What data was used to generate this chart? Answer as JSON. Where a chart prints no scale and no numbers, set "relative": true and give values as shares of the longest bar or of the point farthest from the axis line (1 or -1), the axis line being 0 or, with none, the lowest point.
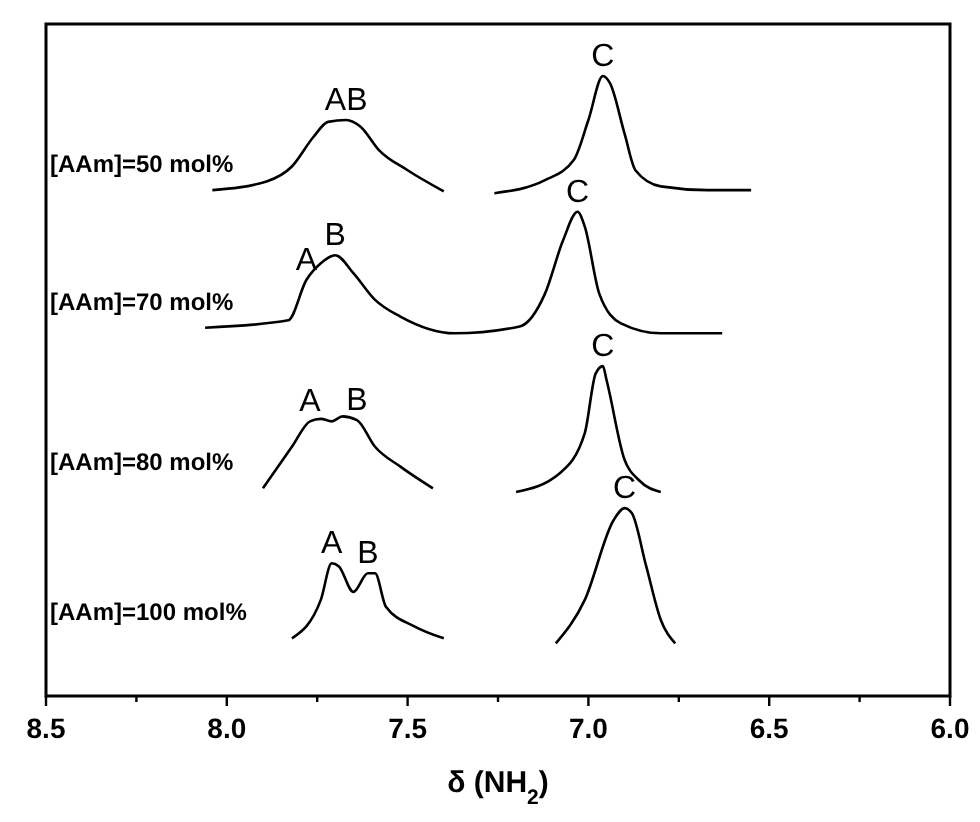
{
  "chart_data": {
    "type": "line",
    "relative": true,
    "xlabel": "δ (NH$_{2}$)",
    "xlim": [
      8.5,
      6.0
    ],
    "xticks": [
      8.5,
      {
        "value": 8.25,
        "label": null
      },
      "8.0",
      {
        "value": 7.75,
        "label": null
      },
      7.5,
      {
        "value": 7.25,
        "label": null
      },
      "7.0",
      {
        "value": 6.75,
        "label": null
      },
      6.5,
      {
        "value": 6.25,
        "label": null
      },
      "6.0"
    ],
    "color": "#000000",
    "grid": false,
    "marker": "none",
    "line_style": "solid",
    "series": [
      {
        "name": "[AAm]=50 mol%",
        "x": [
          8.04,
          7.89,
          7.82,
          7.76,
          7.72,
          7.67,
          7.63,
          7.58,
          7.5,
          7.4,
          7.33,
          7.26,
          7.12,
          7.04,
          7.0,
          6.96,
          6.94,
          6.9,
          6.87,
          6.8,
          6.67,
          6.55
        ],
        "values": [
          0.816,
          0.83,
          0.854,
          0.902,
          0.926,
          0.929,
          0.918,
          0.881,
          0.848,
          0.814,
          null,
          0.811,
          0.832,
          0.865,
          0.929,
          1,
          0.988,
          0.907,
          0.848,
          0.822,
          0.816,
          0.816
        ]
      },
      {
        "name": "[AAm]=70 mol%",
        "x": [
          8.06,
          7.83,
          7.78,
          7.74,
          7.7,
          7.65,
          7.59,
          7.52,
          7.37,
          7.19,
          7.12,
          7.07,
          7.03,
          7.01,
          6.97,
          6.91,
          6.8,
          6.63
        ],
        "values": [
          0.594,
          0.606,
          0.671,
          0.698,
          0.711,
          0.682,
          0.639,
          0.612,
          0.585,
          0.596,
          0.649,
          0.735,
          0.781,
          0.757,
          0.649,
          0.601,
          0.585,
          0.585
        ]
      },
      {
        "name": "[AAm]=80 mol%",
        "x": [
          7.9,
          7.82,
          7.77,
          7.74,
          7.71,
          7.68,
          7.64,
          7.59,
          7.52,
          7.43,
          7.3,
          7.2,
          7.08,
          7.01,
          6.98,
          6.96,
          6.95,
          6.9,
          6.86,
          6.8
        ],
        "values": [
          0.335,
          0.402,
          0.443,
          0.447,
          0.443,
          0.451,
          0.445,
          0.402,
          0.37,
          0.335,
          null,
          0.329,
          0.359,
          0.424,
          0.52,
          0.532,
          0.51,
          0.381,
          0.348,
          0.329
        ]
      },
      {
        "name": "[AAm]=100 mol%",
        "x": [
          7.82,
          7.74,
          7.71,
          7.69,
          7.65,
          7.61,
          7.59,
          7.56,
          7.48,
          7.4,
          7.25,
          7.09,
          7.01,
          6.93,
          6.9,
          6.88,
          6.84,
          6.8,
          6.76
        ],
        "values": [
          0.093,
          0.155,
          0.214,
          0.209,
          0.168,
          0.198,
          0.198,
          0.144,
          0.112,
          0.093,
          null,
          0.085,
          0.155,
          0.284,
          0.303,
          0.295,
          0.209,
          0.123,
          0.085
        ]
      }
    ],
    "annotations": [
      {
        "text": "AB",
        "x": 7.67,
        "y": 0.929
      },
      {
        "text": "C",
        "x": 6.96,
        "y": 1
      },
      {
        "text": "A",
        "x": 7.78,
        "y": 0.671
      },
      {
        "text": "B",
        "x": 7.7,
        "y": 0.711
      },
      {
        "text": "C",
        "x": 7.03,
        "y": 0.781
      },
      {
        "text": "A",
        "x": 7.77,
        "y": 0.443
      },
      {
        "text": "B",
        "x": 7.64,
        "y": 0.445
      },
      {
        "text": "C",
        "x": 6.96,
        "y": 0.532
      },
      {
        "text": "A",
        "x": 7.71,
        "y": 0.214
      },
      {
        "text": "B",
        "x": 7.61,
        "y": 0.198
      },
      {
        "text": "C",
        "x": 6.9,
        "y": 0.303
      }
    ]
  }
}
